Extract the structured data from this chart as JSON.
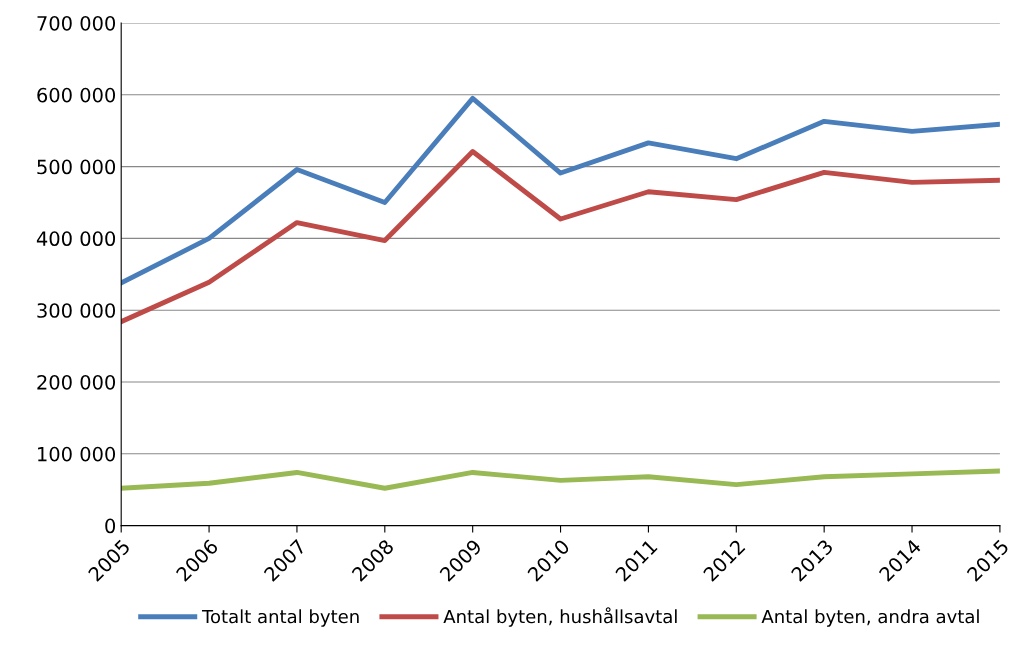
{
  "chart_data": {
    "type": "line",
    "categories": [
      "2005",
      "2006",
      "2007",
      "2008",
      "2009",
      "2010",
      "2011",
      "2012",
      "2013",
      "2014",
      "2015"
    ],
    "series": [
      {
        "name": "Totalt antal byten",
        "color": "#4a7ebb",
        "values": [
          338000,
          400000,
          496000,
          450000,
          595000,
          491000,
          533000,
          511000,
          563000,
          549000,
          559000
        ]
      },
      {
        "name": "Antal byten, hushållsavtal",
        "color": "#be4b48",
        "values": [
          284000,
          339000,
          422000,
          397000,
          521000,
          427000,
          465000,
          454000,
          492000,
          478000,
          481000
        ]
      },
      {
        "name": "Antal byten, andra avtal",
        "color": "#98b954",
        "values": [
          52000,
          59000,
          74000,
          52000,
          74000,
          63000,
          68000,
          57000,
          68000,
          72000,
          76000
        ]
      }
    ],
    "ylim": [
      0,
      700000
    ],
    "yticks": [
      0,
      {
        "value": 100000,
        "label": "100 000"
      },
      {
        "value": 200000,
        "label": "200 000"
      },
      {
        "value": 300000,
        "label": "300 000"
      },
      {
        "value": 400000,
        "label": "400 000"
      },
      {
        "value": 500000,
        "label": "500 000"
      },
      {
        "value": 600000,
        "label": "600 000"
      },
      {
        "value": 700000,
        "label": "700 000"
      }
    ],
    "grid": "y",
    "legend": "bottom",
    "marker": "none",
    "line_style": "solid"
  }
}
